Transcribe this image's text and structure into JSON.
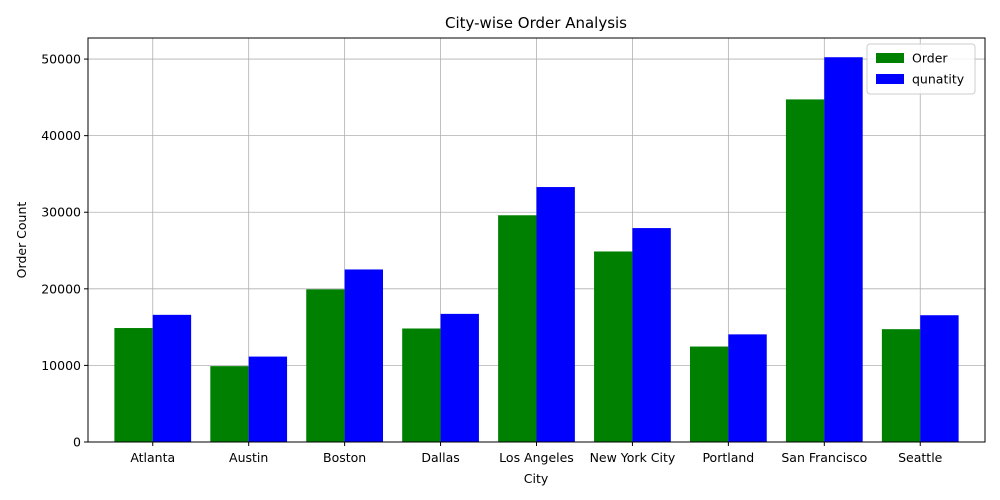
{
  "chart_data": {
    "type": "bar",
    "title": "City-wise Order Analysis",
    "xlabel": "City",
    "ylabel": "Order Count",
    "categories": [
      " Atlanta",
      " Austin",
      " Boston",
      " Dallas",
      " Los Angeles",
      " New York City",
      " Portland",
      " San Francisco",
      " Seattle"
    ],
    "series": [
      {
        "name": "Order",
        "color": "#008000",
        "values": [
          14881,
          9905,
          19934,
          14820,
          29605,
          24876,
          12465,
          44732,
          14732
        ]
      },
      {
        "name": "qunatity",
        "color": "#0000ff",
        "values": [
          16602,
          11153,
          22528,
          16730,
          33289,
          27932,
          14053,
          50239,
          16553
        ]
      }
    ],
    "ylim": [
      0,
      52750
    ],
    "yticks": [
      0,
      10000,
      20000,
      30000,
      40000,
      50000
    ],
    "grid": true,
    "legend_position": "top-right"
  }
}
